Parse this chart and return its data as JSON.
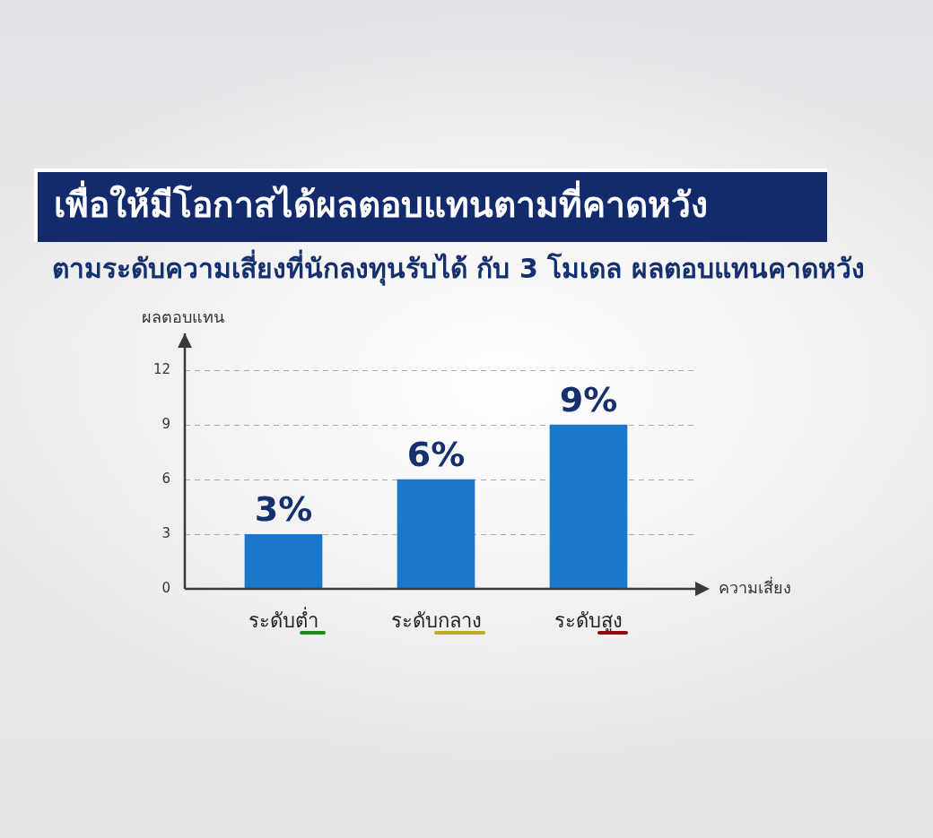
{
  "chart_data": {
    "type": "bar",
    "title": "เพื่อให้มีโอกาสได้ผลตอบแทนตามที่คาดหวัง",
    "subtitle": "ตามระดับความเสี่ยงที่นักลงทุนรับได้ กับ 3 โมเดล ผลตอบแทนคาดหวัง",
    "xlabel": "ความเสี่ยง",
    "ylabel": "ผลตอบแทน",
    "categories": [
      "ระดับต่ำ",
      "ระดับกลาง",
      "ระดับสูง"
    ],
    "values": [
      3,
      6,
      9
    ],
    "value_labels": [
      "3%",
      "6%",
      "9%"
    ],
    "color": "#1a78cc",
    "ylim": [
      0,
      14
    ],
    "yticks": [
      0,
      3,
      6,
      9,
      12
    ],
    "grid": "y"
  }
}
